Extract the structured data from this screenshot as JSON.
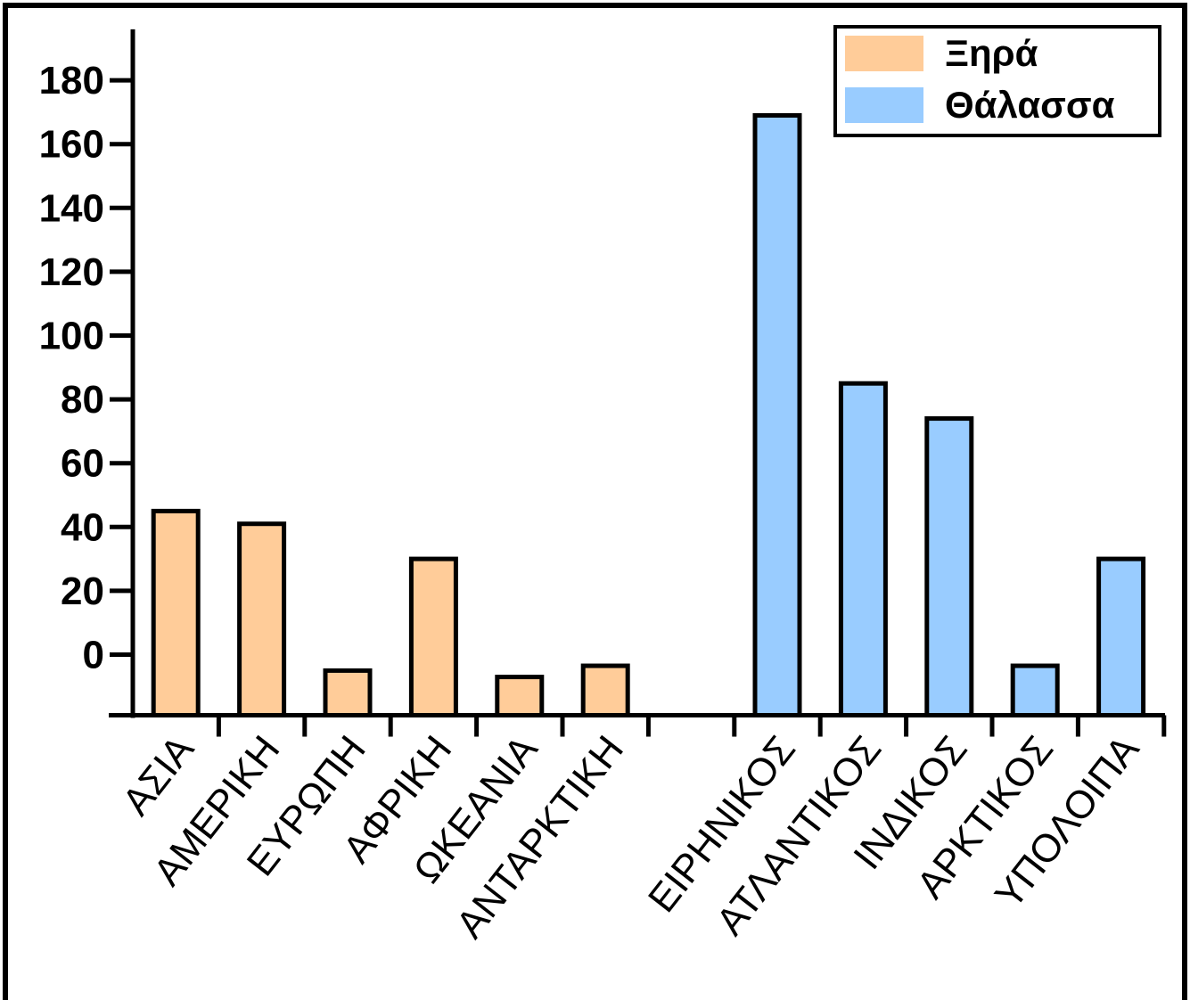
{
  "chart_data": {
    "type": "bar",
    "title": "",
    "xlabel": "",
    "ylabel": "",
    "ylim": [
      -19,
      196
    ],
    "yticks": [
      0,
      20,
      40,
      60,
      80,
      100,
      120,
      140,
      160,
      180
    ],
    "grid": false,
    "legend_position": "top-right",
    "colors": {
      "land": "#ffcc99",
      "sea": "#99ccff",
      "stroke": "#000000"
    },
    "series": [
      {
        "name": "Ξηρά",
        "color": "#ffcc99",
        "categories": [
          "ΑΣΙΑ",
          "ΑΜΕΡΙΚΗ",
          "ΕΥΡΩΠΗ",
          "ΑΦΡΙΚΗ",
          "ΩΚΕΑΝΙΑ",
          "ΑΝΤΑΡΚΤΙΚΗ"
        ],
        "values": [
          45,
          41,
          -5,
          30,
          -7,
          -3.5
        ]
      },
      {
        "name": "Θάλασσα",
        "color": "#99ccff",
        "categories": [
          "ΕΙΡΗΝΙΚΟΣ",
          "ΑΤΛΑΝΤΙΚΟΣ",
          "ΙΝΔΙΚΟΣ",
          "ΑΡΚΤΙΚΟΣ",
          "ΥΠΟΛΟΙΠΑ"
        ],
        "values": [
          169,
          85,
          74,
          -3.5,
          30
        ]
      }
    ]
  }
}
